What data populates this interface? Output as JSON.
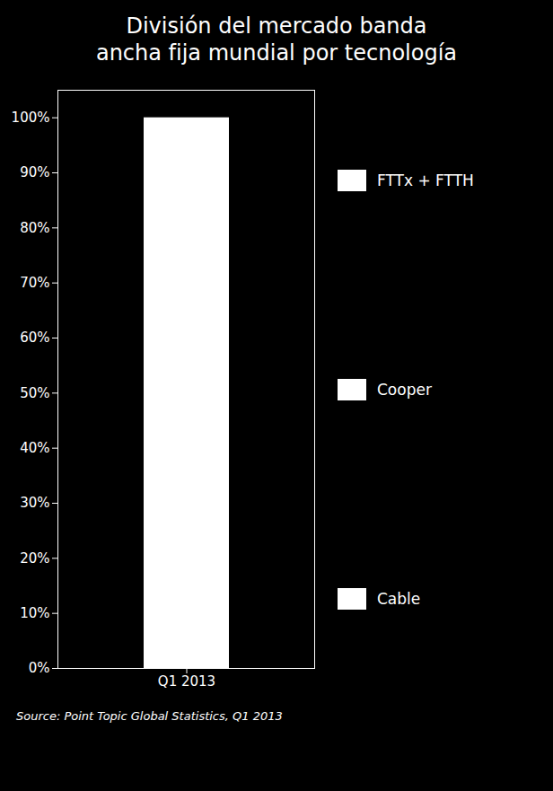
{
  "chart_data": {
    "type": "bar",
    "title": "División del mercado banda",
    "subtitle": "ancha fija mundial por tecnología",
    "categories": [
      "Q1 2013"
    ],
    "values": [
      100
    ],
    "color": "#ffffff",
    "ylim": [
      0,
      105
    ],
    "yticks": [
      {
        "value": 0,
        "label": "0%"
      },
      {
        "value": 10,
        "label": "10%"
      },
      {
        "value": 20,
        "label": "20%"
      },
      {
        "value": 30,
        "label": "30%"
      },
      {
        "value": 40,
        "label": "40%"
      },
      {
        "value": 50,
        "label": "50%"
      },
      {
        "value": 60,
        "label": "60%"
      },
      {
        "value": 70,
        "label": "70%"
      },
      {
        "value": 80,
        "label": "80%"
      },
      {
        "value": 90,
        "label": "90%"
      },
      {
        "value": 100,
        "label": "100%"
      }
    ],
    "annotations": [
      "FTTx + FTTH",
      "Cooper",
      "Cable"
    ],
    "caption": "Source: Point Topic Global Statistics, Q1 2013",
    "grid": false
  }
}
